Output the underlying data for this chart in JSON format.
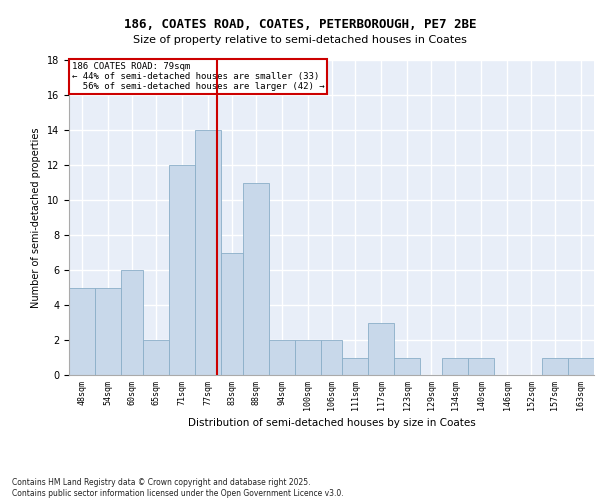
{
  "title1": "186, COATES ROAD, COATES, PETERBOROUGH, PE7 2BE",
  "title2": "Size of property relative to semi-detached houses in Coates",
  "xlabel": "Distribution of semi-detached houses by size in Coates",
  "ylabel": "Number of semi-detached properties",
  "footer1": "Contains HM Land Registry data © Crown copyright and database right 2025.",
  "footer2": "Contains public sector information licensed under the Open Government Licence v3.0.",
  "bin_labels": [
    "48sqm",
    "54sqm",
    "60sqm",
    "65sqm",
    "71sqm",
    "77sqm",
    "83sqm",
    "88sqm",
    "94sqm",
    "100sqm",
    "106sqm",
    "111sqm",
    "117sqm",
    "123sqm",
    "129sqm",
    "134sqm",
    "140sqm",
    "146sqm",
    "152sqm",
    "157sqm",
    "163sqm"
  ],
  "counts": [
    5,
    5,
    6,
    2,
    12,
    14,
    7,
    11,
    2,
    2,
    2,
    1,
    3,
    1,
    0,
    1,
    1,
    0,
    0,
    1,
    1
  ],
  "bin_edges": [
    45,
    51,
    57,
    62,
    68,
    74,
    80,
    85,
    91,
    97,
    103,
    108,
    114,
    120,
    126,
    131,
    137,
    143,
    149,
    154,
    160,
    166
  ],
  "property_value": 79,
  "property_label": "186 COATES ROAD: 79sqm",
  "pct_smaller": 44,
  "pct_larger": 56,
  "n_smaller": 33,
  "n_larger": 42,
  "bar_color": "#c8d8ea",
  "bar_edge_color": "#8aaec8",
  "vline_color": "#cc0000",
  "background_color": "#e8eef8",
  "grid_color": "#ffffff",
  "annotation_box_color": "#ffffff",
  "annotation_border_color": "#cc0000",
  "ylim": [
    0,
    18
  ],
  "yticks": [
    0,
    2,
    4,
    6,
    8,
    10,
    12,
    14,
    16,
    18
  ]
}
